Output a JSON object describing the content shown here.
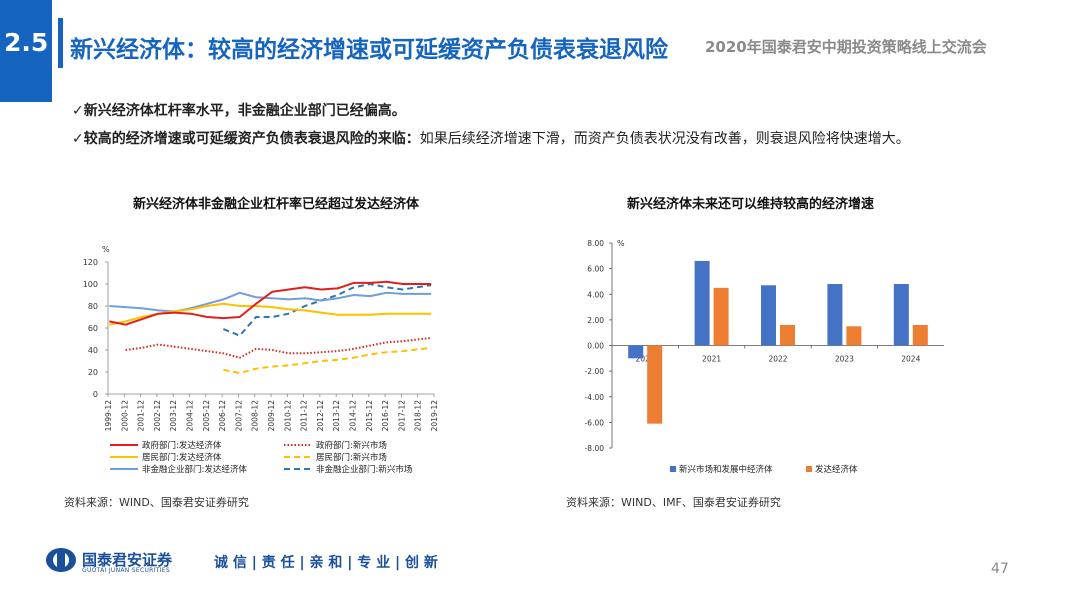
{
  "header": {
    "section_number": "2.5",
    "title": "新兴经济体：较高的经济增速或可延缓资产负债表衰退风险",
    "subtitle": "2020年国泰君安中期投资策略线上交流会"
  },
  "bullets": [
    {
      "check": "✓",
      "bold": "新兴经济体杠杆率水平，非金融企业部门已经偏高。",
      "normal": ""
    },
    {
      "check": "✓",
      "bold": "较高的经济增速或可延缓资产负债表衰退风险的来临：",
      "normal": "如果后续经济增速下滑，而资产负债表状况没有改善，则衰退风险将快速增大。"
    }
  ],
  "source_left": "资料来源：WIND、国泰君安证券研究",
  "source_right": "资料来源：WIND、IMF、国泰君安证券研究",
  "footer": {
    "company_cn": "国泰君安证券",
    "company_en": "GUOTAI JUNAN SECURITIES",
    "slogan": "诚 信 | 责 任 | 亲 和 | 专 业 | 创 新",
    "page_number": "47"
  },
  "colors": {
    "brand": "#1565c0",
    "red": "#e0201c",
    "yellow": "#ffc000",
    "lightblue": "#6f9fd8",
    "darkblue": "#2e75b6",
    "bar_blue": "#4472c4",
    "bar_orange": "#ed7d31"
  },
  "chart_data": [
    {
      "type": "line",
      "title": "新兴经济体非金融企业杠杆率已经超过发达经济体",
      "ylabel": "%",
      "ylim": [
        0,
        120
      ],
      "yticks": [
        0,
        20,
        40,
        60,
        80,
        100,
        120
      ],
      "x_range": [
        1999.92,
        2019.92
      ],
      "xtick_labels": [
        "1999-12",
        "2000-12",
        "2001-12",
        "2002-12",
        "2003-12",
        "2004-12",
        "2005-12",
        "2006-12",
        "2007-12",
        "2008-12",
        "2009-12",
        "2010-12",
        "2011-12",
        "2012-12",
        "2013-12",
        "2014-12",
        "2015-12",
        "2016-12",
        "2017-12",
        "2018-12",
        "2019-12"
      ],
      "legend": "bottom",
      "series": [
        {
          "name": "政府部门:发达经济体",
          "color": "#e0201c",
          "dash": "solid",
          "x": [
            2000,
            2001,
            2002,
            2003,
            2004,
            2005,
            2006,
            2007,
            2008,
            2009,
            2010,
            2011,
            2012,
            2013,
            2014,
            2015,
            2016,
            2017,
            2018,
            2019.75
          ],
          "y": [
            66,
            63,
            68,
            73,
            74,
            73,
            70,
            69,
            70,
            82,
            93,
            95,
            97,
            95,
            96,
            101,
            101,
            102,
            100,
            100
          ]
        },
        {
          "name": "居民部门:发达经济体",
          "color": "#ffc000",
          "dash": "solid",
          "x": [
            2000,
            2001,
            2002,
            2003,
            2004,
            2005,
            2006,
            2007,
            2008,
            2009,
            2010,
            2011,
            2012,
            2013,
            2014,
            2015,
            2016,
            2017,
            2018,
            2019.75
          ],
          "y": [
            63,
            66,
            70,
            73,
            75,
            77,
            80,
            82,
            80,
            80,
            79,
            77,
            76,
            74,
            72,
            72,
            72,
            73,
            73,
            73
          ]
        },
        {
          "name": "非金融企业部门:发达经济体",
          "color": "#6f9fd8",
          "dash": "solid",
          "x": [
            2000,
            2001,
            2002,
            2003,
            2004,
            2005,
            2006,
            2007,
            2008,
            2009,
            2010,
            2011,
            2012,
            2013,
            2014,
            2015,
            2016,
            2017,
            2018,
            2019.75
          ],
          "y": [
            80,
            79,
            78,
            76,
            75,
            78,
            82,
            86,
            92,
            88,
            87,
            86,
            87,
            85,
            87,
            90,
            89,
            92,
            91,
            91
          ]
        },
        {
          "name": "政府部门:新兴市场",
          "color": "#e0201c",
          "dash": "dotted",
          "x": [
            2001,
            2002,
            2003,
            2004,
            2005,
            2006,
            2007,
            2008,
            2009,
            2010,
            2011,
            2012,
            2013,
            2014,
            2015,
            2016,
            2017,
            2018,
            2019.75
          ],
          "y": [
            40,
            42,
            45,
            43,
            41,
            39,
            37,
            33,
            41,
            40,
            37,
            37,
            38,
            39,
            41,
            44,
            47,
            48,
            51
          ]
        },
        {
          "name": "居民部门:新兴市场",
          "color": "#ffc000",
          "dash": "dashed",
          "x": [
            2007,
            2008,
            2009,
            2010,
            2011,
            2012,
            2013,
            2014,
            2015,
            2016,
            2017,
            2018,
            2019.75
          ],
          "y": [
            22,
            19,
            23,
            25,
            26,
            28,
            30,
            31,
            33,
            36,
            38,
            39,
            42
          ]
        },
        {
          "name": "非金融企业部门:新兴市场",
          "color": "#2e75b6",
          "dash": "dashed",
          "x": [
            2007,
            2008,
            2009,
            2010,
            2011,
            2012,
            2013,
            2014,
            2015,
            2016,
            2017,
            2018,
            2019.75
          ],
          "y": [
            59,
            53,
            70,
            70,
            73,
            80,
            85,
            90,
            97,
            100,
            97,
            95,
            99
          ]
        }
      ]
    },
    {
      "type": "bar",
      "title": "新兴经济体未来还可以维持较高的经济增速",
      "ylabel": "%",
      "ylim": [
        -8,
        8
      ],
      "yticks": [
        "8.00",
        "6.00",
        "4.00",
        "2.00",
        "0.00",
        "-2.00",
        "-4.00",
        "-6.00",
        "-8.00"
      ],
      "categories": [
        "2020",
        "2021",
        "2022",
        "2023",
        "2024"
      ],
      "legend": "bottom",
      "series": [
        {
          "name": "新兴市场和发展中经济体",
          "color": "#4472c4",
          "values": [
            -1.0,
            6.6,
            4.7,
            4.8,
            4.8
          ]
        },
        {
          "name": "发达经济体",
          "color": "#ed7d31",
          "values": [
            -6.1,
            4.5,
            1.6,
            1.5,
            1.6
          ]
        }
      ]
    }
  ]
}
